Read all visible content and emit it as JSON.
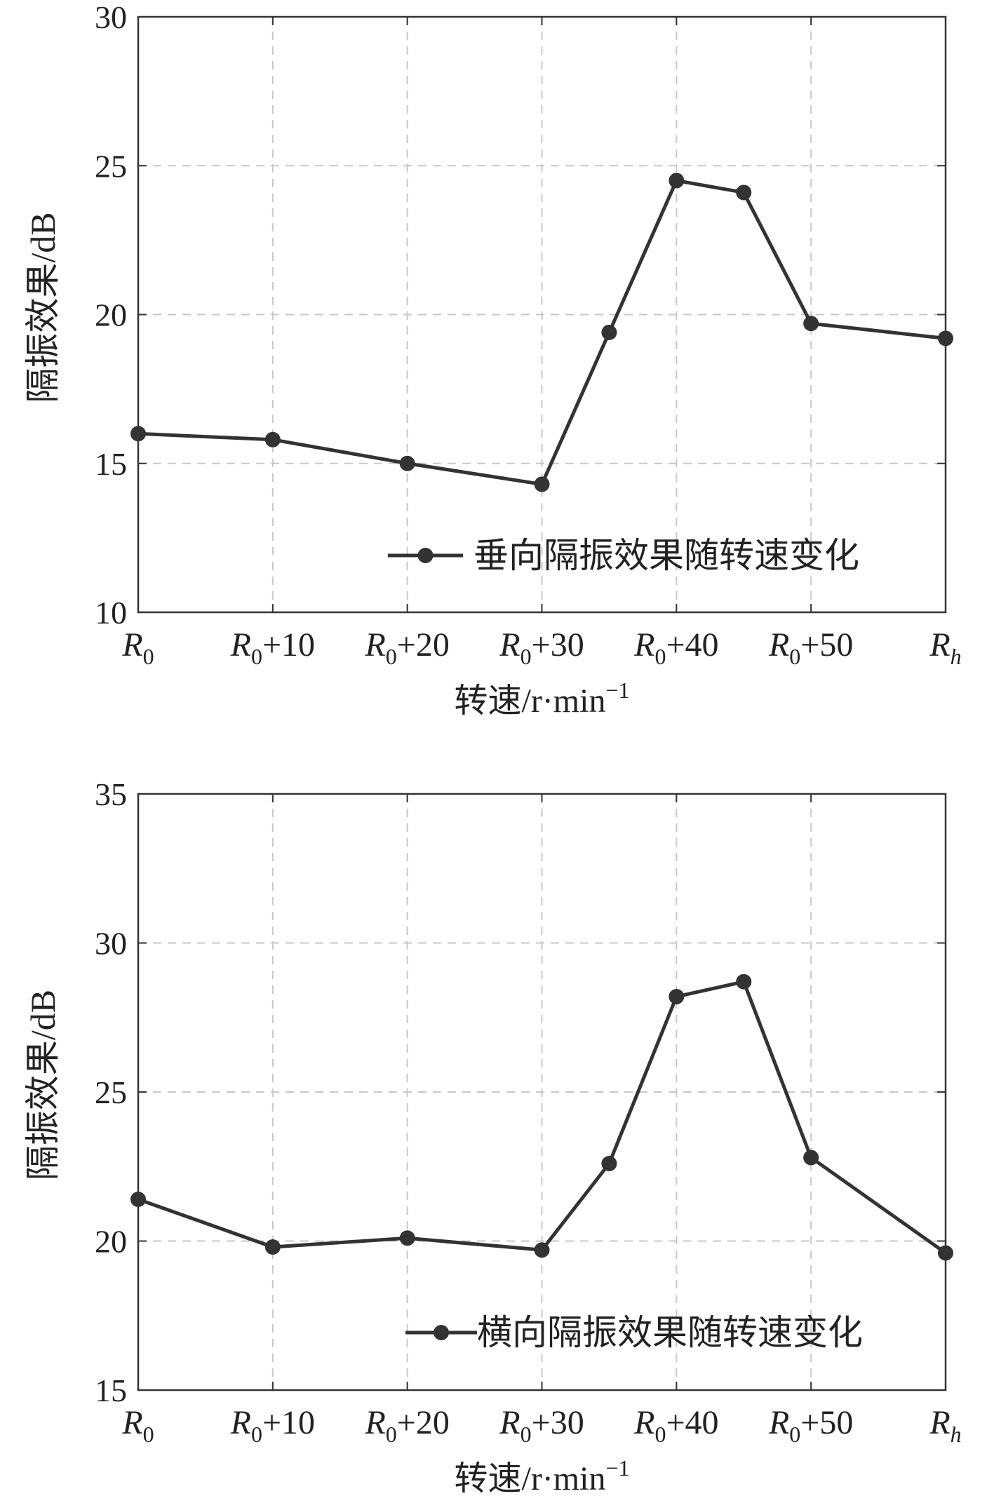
{
  "chart_data": [
    {
      "type": "line",
      "categories_label": [
        {
          "base": "R",
          "sub": "0",
          "suffix": ""
        },
        {
          "base": "R",
          "sub": "0",
          "suffix": "+10"
        },
        {
          "base": "R",
          "sub": "0",
          "suffix": "+20"
        },
        {
          "base": "R",
          "sub": "0",
          "suffix": "+30"
        },
        {
          "base": "R",
          "sub": "0",
          "suffix": "+40"
        },
        {
          "base": "R",
          "sub": "0",
          "suffix": "+50"
        },
        {
          "base": "R",
          "sub": "h",
          "suffix": ""
        }
      ],
      "x": [
        0,
        10,
        20,
        30,
        35,
        40,
        45,
        50,
        60
      ],
      "series": [
        {
          "name": "垂向隔振效果随转速变化",
          "values": [
            16.0,
            15.8,
            15.0,
            14.3,
            19.4,
            24.5,
            24.1,
            19.7,
            19.2
          ]
        }
      ],
      "xlabel": "转速/r·min",
      "xlabel_sup": "−1",
      "ylabel": "隔振效果/dB",
      "ylim": [
        10,
        30
      ],
      "yticks": [
        10,
        15,
        20,
        25,
        30
      ],
      "grid": true,
      "legend_position": "lower-right"
    },
    {
      "type": "line",
      "categories_label": [
        {
          "base": "R",
          "sub": "0",
          "suffix": ""
        },
        {
          "base": "R",
          "sub": "0",
          "suffix": "+10"
        },
        {
          "base": "R",
          "sub": "0",
          "suffix": "+20"
        },
        {
          "base": "R",
          "sub": "0",
          "suffix": "+30"
        },
        {
          "base": "R",
          "sub": "0",
          "suffix": "+40"
        },
        {
          "base": "R",
          "sub": "0",
          "suffix": "+50"
        },
        {
          "base": "R",
          "sub": "h",
          "suffix": ""
        }
      ],
      "x": [
        0,
        10,
        20,
        30,
        35,
        40,
        45,
        50,
        60
      ],
      "series": [
        {
          "name": "横向隔振效果随转速变化",
          "values": [
            21.4,
            19.8,
            20.1,
            19.7,
            22.6,
            28.2,
            28.7,
            22.8,
            19.6
          ]
        }
      ],
      "xlabel": "转速/r·min",
      "xlabel_sup": "−1",
      "ylabel": "隔振效果/dB",
      "ylim": [
        15,
        35
      ],
      "yticks": [
        15,
        20,
        25,
        30,
        35
      ],
      "grid": true,
      "legend_position": "lower-right"
    }
  ]
}
